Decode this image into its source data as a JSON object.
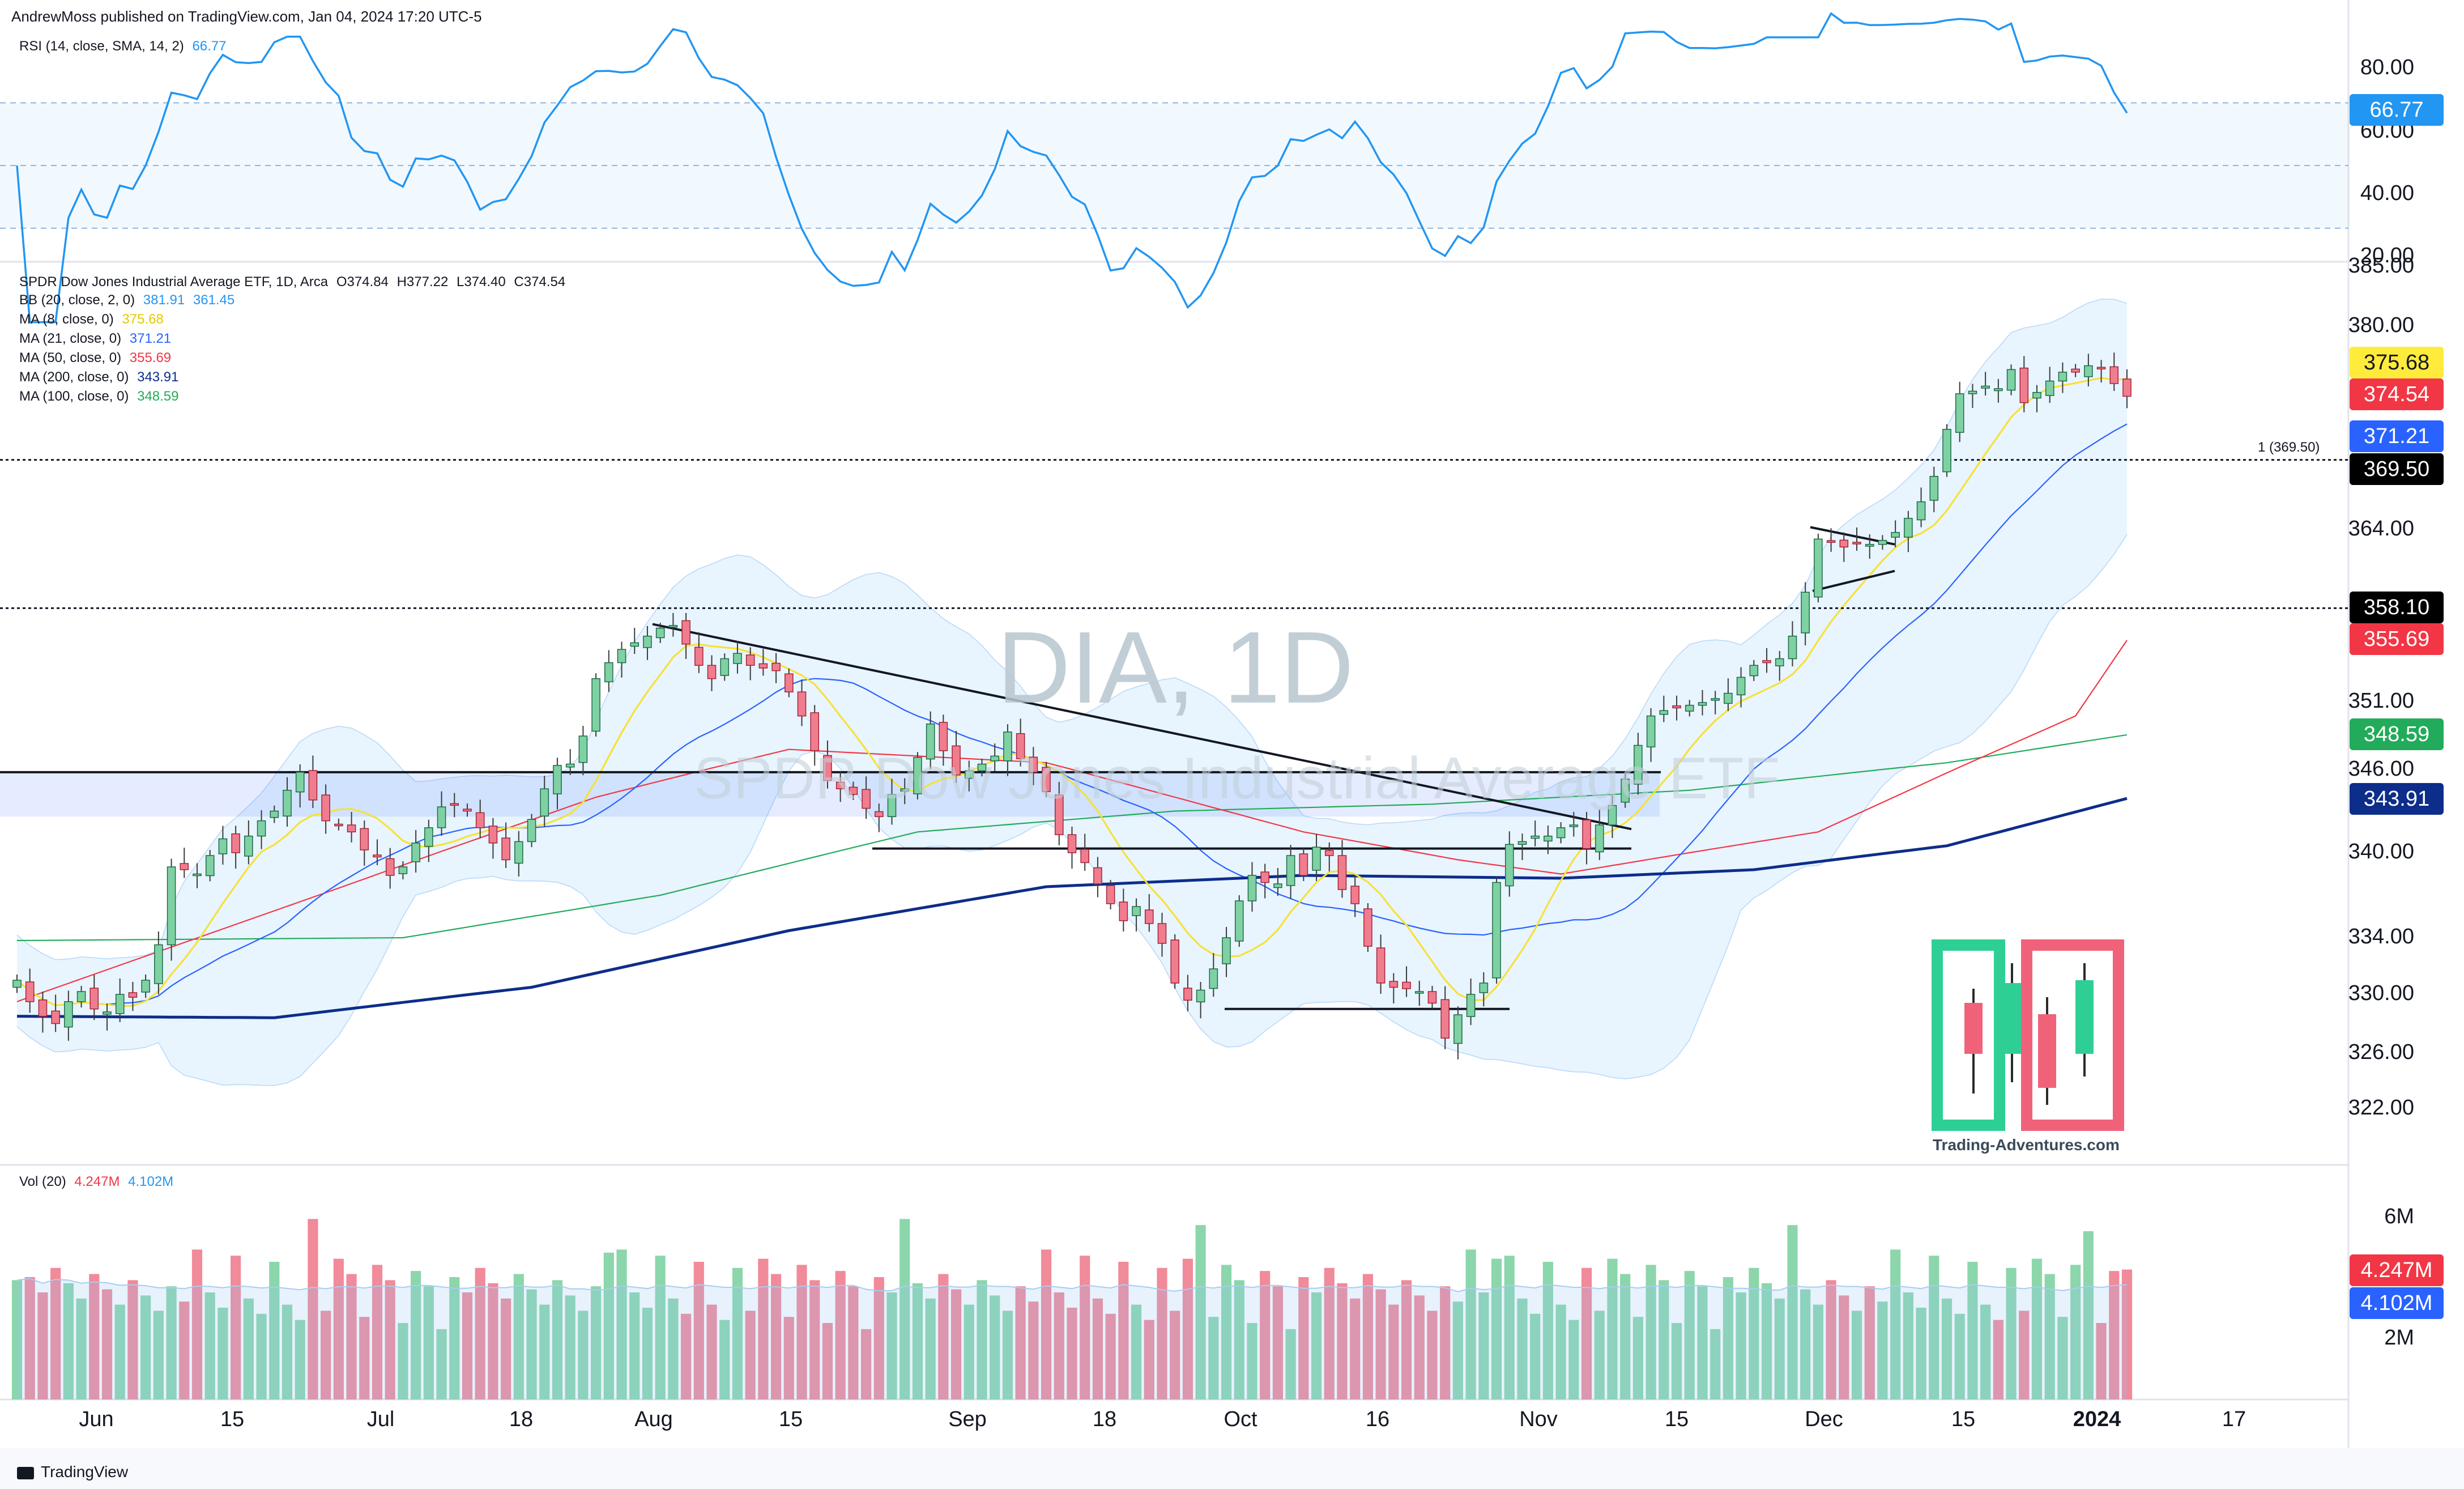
{
  "header": {
    "published": "AndrewMoss published on TradingView.com, Jan 04, 2024 17:20 UTC-5"
  },
  "rsi_panel": {
    "legend_name": "RSI (14, close, SMA, 14, 2)",
    "legend_value": "66.77",
    "ticks": [
      "80.00",
      "60.00",
      "40.00",
      "20.00"
    ],
    "current_label": "66.77",
    "color": "#2196f3"
  },
  "price_panel": {
    "symbol_line": "SPDR Dow Jones Industrial Average ETF, 1D, Arca",
    "ohlc": {
      "o": "O374.84",
      "h": "H377.22",
      "l": "L374.40",
      "c": "C374.54"
    },
    "legends": [
      {
        "name": "BB (20, close, 2, 0)",
        "v1": "381.91",
        "v2": "361.45",
        "color": "#2196f3"
      },
      {
        "name": "MA (8, close, 0)",
        "v1": "375.68",
        "v2": "",
        "color": "#f7e12f"
      },
      {
        "name": "MA (21, close, 0)",
        "v1": "371.21",
        "v2": "",
        "color": "#2962ff"
      },
      {
        "name": "MA (50, close, 0)",
        "v1": "355.69",
        "v2": "",
        "color": "#f23645"
      },
      {
        "name": "MA (200, close, 0)",
        "v1": "343.91",
        "v2": "",
        "color": "#0d2d8a"
      },
      {
        "name": "MA (100, close, 0)",
        "v1": "348.59",
        "v2": "",
        "color": "#22ab5a"
      }
    ],
    "ticks": [
      "385.00",
      "380.00",
      "364.00",
      "351.00",
      "346.00",
      "340.00",
      "334.00",
      "330.00",
      "326.00",
      "322.00"
    ],
    "watermark_big": "DIA, 1D",
    "watermark_small": "SPDR Dow Jones Industrial Average ETF",
    "fib_label": "1 (369.50)",
    "labels": [
      {
        "text": "375.68",
        "bg": "#ffeb3b",
        "fg": "#131722"
      },
      {
        "text": "374.54",
        "bg": "#f23645",
        "fg": "#ffffff"
      },
      {
        "text": "371.21",
        "bg": "#2962ff",
        "fg": "#ffffff"
      },
      {
        "text": "369.50",
        "bg": "#000000",
        "fg": "#ffffff"
      },
      {
        "text": "358.10",
        "bg": "#000000",
        "fg": "#ffffff"
      },
      {
        "text": "355.69",
        "bg": "#f23645",
        "fg": "#ffffff"
      },
      {
        "text": "348.59",
        "bg": "#22ab5a",
        "fg": "#ffffff"
      },
      {
        "text": "343.91",
        "bg": "#0d2d8a",
        "fg": "#ffffff"
      }
    ],
    "logo_text": "Trading-Adventures.com"
  },
  "volume_panel": {
    "legend_name": "Vol (20)",
    "legend_v1": "4.247M",
    "legend_v2": "4.102M",
    "ticks": [
      "6M",
      "2M"
    ],
    "labels": [
      {
        "text": "4.247M",
        "bg": "#f23645"
      },
      {
        "text": "4.102M",
        "bg": "#2962ff"
      }
    ]
  },
  "x_axis": {
    "labels": [
      "Jun",
      "15",
      "Jul",
      "18",
      "Aug",
      "15",
      "Sep",
      "18",
      "Oct",
      "16",
      "Nov",
      "15",
      "Dec",
      "15",
      "2024",
      "17"
    ]
  },
  "footer": {
    "brand": "TradingView"
  },
  "chart_data": {
    "type": "candlestick",
    "series": [
      {
        "name": "DIA, 1D",
        "close": [
          331.0,
          329.5,
          328.5,
          328.0,
          329.5,
          330.2,
          329.0,
          328.8,
          330.0,
          329.8,
          331.0,
          333.5,
          339.0,
          338.8,
          338.5,
          339.8,
          341.0,
          340.0,
          341.2,
          342.3,
          343.0,
          344.5,
          345.8,
          343.8,
          342.3,
          342.0,
          341.5,
          340.2,
          339.7,
          338.4,
          339.0,
          340.7,
          341.8,
          343.3,
          343.5,
          343.0,
          341.8,
          340.7,
          339.5,
          340.8,
          342.4,
          344.6,
          346.3,
          346.4,
          348.5,
          352.8,
          354.0,
          355.0,
          355.5,
          356.0,
          356.6,
          356.8,
          355.4,
          353.8,
          352.8,
          354.3,
          354.7,
          353.8,
          353.6,
          353.4,
          351.8,
          350.0,
          347.4,
          345.2,
          344.6,
          344.2,
          343.2,
          342.6,
          344.2,
          344.6,
          346.9,
          349.4,
          347.4,
          345.6,
          345.9,
          346.4,
          347.0,
          348.8,
          346.8,
          345.8,
          344.4,
          341.3,
          340.0,
          339.3,
          337.8,
          336.4,
          335.2,
          336.2,
          335.0,
          333.6,
          330.8,
          329.6,
          330.3,
          331.8,
          334.0,
          336.6,
          338.4,
          337.9,
          337.8,
          339.8,
          338.4,
          340.4,
          339.8,
          337.4,
          336.4,
          333.4,
          330.8,
          330.5,
          330.4,
          330.2,
          329.4,
          327.0,
          328.6,
          330.0,
          330.8,
          337.9,
          340.6,
          340.8,
          341.2,
          341.2,
          341.8,
          342.0,
          340.3,
          342.0,
          343.4,
          345.3,
          347.8,
          350.0,
          350.4,
          350.6,
          350.8,
          351.0,
          351.3,
          351.7,
          352.9,
          353.8,
          354.0,
          354.3,
          356.0,
          359.3,
          363.3,
          363.1,
          362.7,
          363.0,
          362.9,
          363.2,
          363.8,
          364.9,
          366.2,
          368.2,
          371.9,
          374.7,
          374.9,
          375.3,
          375.1,
          376.6,
          374.0,
          374.8,
          375.7,
          376.4,
          376.4,
          376.9,
          376.7,
          375.5,
          374.5
        ]
      },
      {
        "name": "BB (20, close, 2, 0)",
        "upper_last": 381.91,
        "lower_last": 361.45
      },
      {
        "name": "MA (8, close, 0)",
        "last": 375.68
      },
      {
        "name": "MA (21, close, 0)",
        "last": 371.21
      },
      {
        "name": "MA (50, close, 0)",
        "last": 355.69
      },
      {
        "name": "MA (200, close, 0)",
        "last": 343.91
      },
      {
        "name": "MA (100, close, 0)",
        "last": 348.59
      }
    ],
    "y_ticks": [
      385,
      380,
      364,
      351,
      346,
      340,
      334,
      330,
      326,
      322
    ],
    "horizontal_levels": [
      369.5,
      358.1,
      345.8,
      340.3,
      329.0
    ],
    "rsi": {
      "ticks": [
        80,
        60,
        40,
        20
      ],
      "last": 66.77,
      "bands": [
        70,
        50,
        30
      ]
    },
    "volume": {
      "ticks_millions": [
        6,
        2
      ],
      "last_millions": 4.247,
      "ma_last_millions": 4.102
    }
  }
}
